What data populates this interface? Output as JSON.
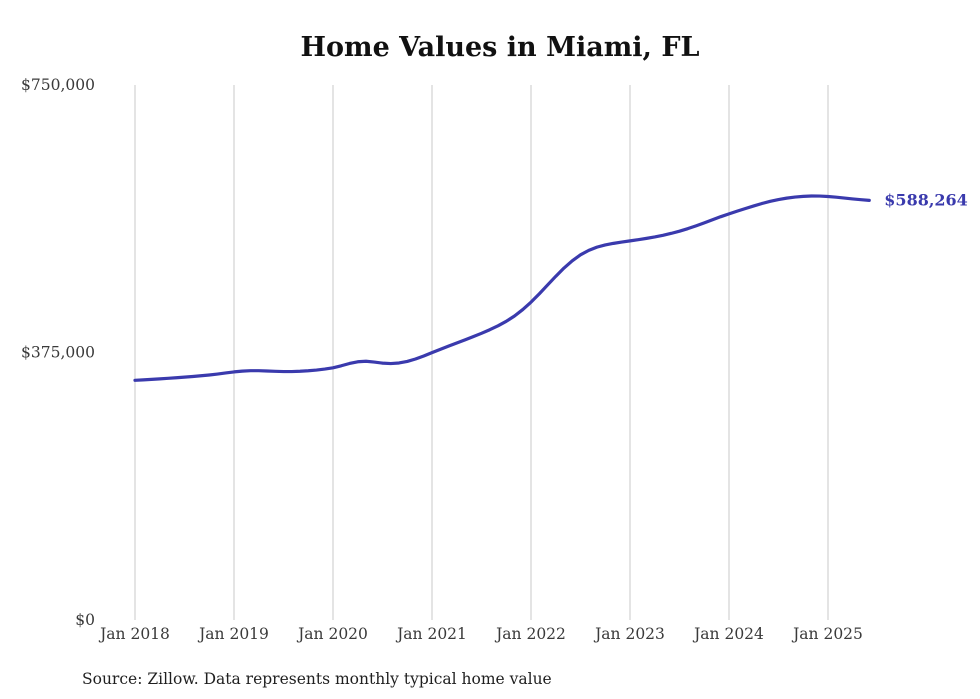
{
  "page": {
    "title": "Home Values in Miami, FL",
    "source_note": "Source: Zillow. Data represents monthly typical home value"
  },
  "chart_data": {
    "type": "line",
    "title": "Home Values in Miami, FL",
    "series_name": "Monthly typical home value",
    "source": "Source: Zillow. Data represents monthly typical home value",
    "end_label": "$588,264",
    "end_value": 588264,
    "line_color": "#3a3aad",
    "grid_color": "#c9c9c9",
    "grid": "vertical-only",
    "legend": "none",
    "ylim": [
      0,
      750000
    ],
    "y_ticks": [
      {
        "value": 0,
        "label": "$0"
      },
      {
        "value": 375000,
        "label": "$375,000"
      },
      {
        "value": 750000,
        "label": "$750,000"
      }
    ],
    "x_tick_labels": [
      "Jan 2018",
      "Jan 2019",
      "Jan 2020",
      "Jan 2021",
      "Jan 2022",
      "Jan 2023",
      "Jan 2024",
      "Jan 2025"
    ],
    "x": [
      "2018-01",
      "2018-02",
      "2018-03",
      "2018-04",
      "2018-05",
      "2018-06",
      "2018-07",
      "2018-08",
      "2018-09",
      "2018-10",
      "2018-11",
      "2018-12",
      "2019-01",
      "2019-02",
      "2019-03",
      "2019-04",
      "2019-05",
      "2019-06",
      "2019-07",
      "2019-08",
      "2019-09",
      "2019-10",
      "2019-11",
      "2019-12",
      "2020-01",
      "2020-02",
      "2020-03",
      "2020-04",
      "2020-05",
      "2020-06",
      "2020-07",
      "2020-08",
      "2020-09",
      "2020-10",
      "2020-11",
      "2020-12",
      "2021-01",
      "2021-02",
      "2021-03",
      "2021-04",
      "2021-05",
      "2021-06",
      "2021-07",
      "2021-08",
      "2021-09",
      "2021-10",
      "2021-11",
      "2021-12",
      "2022-01",
      "2022-02",
      "2022-03",
      "2022-04",
      "2022-05",
      "2022-06",
      "2022-07",
      "2022-08",
      "2022-09",
      "2022-10",
      "2022-11",
      "2022-12",
      "2023-01",
      "2023-02",
      "2023-03",
      "2023-04",
      "2023-05",
      "2023-06",
      "2023-07",
      "2023-08",
      "2023-09",
      "2023-10",
      "2023-11",
      "2023-12",
      "2024-01",
      "2024-02",
      "2024-03",
      "2024-04",
      "2024-05",
      "2024-06",
      "2024-07",
      "2024-08",
      "2024-09",
      "2024-10",
      "2024-11",
      "2024-12",
      "2025-01",
      "2025-02",
      "2025-03",
      "2025-04",
      "2025-05",
      "2025-06"
    ],
    "values": [
      336000,
      336600,
      337300,
      338000,
      338800,
      339600,
      340500,
      341400,
      342400,
      343500,
      344800,
      346300,
      347800,
      348900,
      349500,
      349500,
      349100,
      348600,
      348300,
      348300,
      348700,
      349400,
      350400,
      351800,
      353600,
      356400,
      359600,
      362000,
      362700,
      361600,
      360100,
      359500,
      360300,
      362500,
      365900,
      370100,
      374800,
      379400,
      383900,
      388300,
      392700,
      397200,
      401900,
      406900,
      412400,
      418700,
      426200,
      435200,
      445600,
      457200,
      469500,
      481800,
      493400,
      503600,
      511900,
      518200,
      522700,
      525800,
      528000,
      529800,
      531500,
      533200,
      535000,
      537000,
      539300,
      542000,
      545100,
      548600,
      552500,
      556700,
      561100,
      565400,
      569400,
      573200,
      576900,
      580500,
      583900,
      586900,
      589400,
      591400,
      592900,
      593900,
      594400,
      594300,
      593700,
      592700,
      591500,
      590300,
      589200,
      588264
    ]
  }
}
